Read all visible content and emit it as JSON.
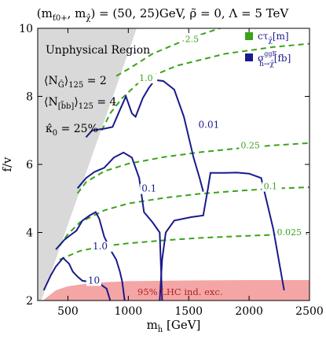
{
  "chart_data": {
    "type": "line",
    "title": "(m_{ť0+}, m_{χ̂}) = (50, 25) GeV, ρ̃ = 0, Λ = 5 TeV",
    "title_parts": {
      "prefix": "(m",
      "sub1": "ť0+",
      "mid": ", m",
      "sub2": "χ̂",
      "suffix": ") = (50, 25)GeV, ρ̃ = 0, Λ = 5 TeV"
    },
    "xlabel": "m_ĥ [GeV]",
    "xlabel_parts": {
      "base": "m",
      "sub": "ĥ",
      "unit": " [GeV]"
    },
    "ylabel": "f/v",
    "xlim": [
      250,
      2500
    ],
    "ylim": [
      2,
      10
    ],
    "xticks": [
      500,
      1000,
      1500,
      2000,
      2500
    ],
    "yticks": [
      2,
      4,
      6,
      8,
      10
    ],
    "grid": false,
    "legend_placement": "top-right",
    "legend": [
      {
        "name": "cτ_{χ̂}[m]",
        "parts": {
          "base": "cτ",
          "sub": "χ̂",
          "unit": "[m]"
        },
        "color": "#3aa31a",
        "style": "dashed"
      },
      {
        "name": "σ^{ggF}_{ĥ→χ̂}[fb]",
        "parts": {
          "base": "σ",
          "sup": "ggF",
          "sub": "ĥ→χ̂",
          "unit": "[fb]"
        },
        "color": "#1a1a8c",
        "style": "solid"
      }
    ],
    "region_unphysical": {
      "label": "Unphysical Region",
      "color": "#d9d9d9",
      "boundary": [
        [
          280,
          2
        ],
        [
          1070,
          10
        ]
      ]
    },
    "region_lhc": {
      "label": "95% LHC ind. exc.",
      "color": "#f4a6a6",
      "boundary_top": [
        [
          300,
          2.02
        ],
        [
          400,
          2.3
        ],
        [
          500,
          2.42
        ],
        [
          700,
          2.52
        ],
        [
          1000,
          2.57
        ],
        [
          1500,
          2.59
        ],
        [
          2000,
          2.6
        ],
        [
          2500,
          2.6
        ]
      ]
    },
    "annotations": [
      {
        "text": "⟨N_{Ĝ}⟩_{125} = 2",
        "parts": {
          "pre": "⟨N",
          "sub": "Ĝ",
          "close": "⟩",
          "sub2": "125",
          "val": " = 2"
        }
      },
      {
        "text": "⟨N_{[b̃b]}⟩_{125} = 4",
        "parts": {
          "pre": "⟨N",
          "sub": "[b̃b]",
          "close": "⟩",
          "sub2": "125",
          "val": " = 4"
        }
      },
      {
        "text": "κ̂_0 = 25%",
        "parts": {
          "pre": "κ̂",
          "sub": "0",
          "val": " = 25%"
        }
      }
    ],
    "ctau_contours": [
      {
        "label": "2.5",
        "label_at": [
          1470,
          9.6
        ],
        "points": [
          [
            900,
            8.6
          ],
          [
            1000,
            8.8
          ],
          [
            1200,
            9.25
          ],
          [
            1500,
            9.7
          ],
          [
            1800,
            10.05
          ]
        ]
      },
      {
        "label": "1.0",
        "label_at": [
          1090,
          8.45
        ],
        "points": [
          [
            780,
            7.0
          ],
          [
            850,
            7.5
          ],
          [
            950,
            7.95
          ],
          [
            1100,
            8.45
          ],
          [
            1400,
            8.9
          ],
          [
            1800,
            9.25
          ],
          [
            2200,
            9.45
          ],
          [
            2500,
            9.55
          ]
        ]
      },
      {
        "label": "0.25",
        "label_at": [
          1930,
          6.47
        ],
        "points": [
          [
            580,
            5.15
          ],
          [
            650,
            5.48
          ],
          [
            800,
            5.8
          ],
          [
            1000,
            6.02
          ],
          [
            1300,
            6.22
          ],
          [
            1600,
            6.36
          ],
          [
            1900,
            6.47
          ],
          [
            2200,
            6.56
          ],
          [
            2500,
            6.63
          ]
        ]
      },
      {
        "label": "0.1",
        "label_at": [
          2120,
          5.27
        ],
        "points": [
          [
            430,
            3.6
          ],
          [
            500,
            3.95
          ],
          [
            600,
            4.3
          ],
          [
            800,
            4.65
          ],
          [
            1000,
            4.85
          ],
          [
            1300,
            5.02
          ],
          [
            1600,
            5.14
          ],
          [
            1900,
            5.22
          ],
          [
            2200,
            5.29
          ],
          [
            2500,
            5.33
          ]
        ]
      },
      {
        "label": "0.025",
        "label_at": [
          2230,
          3.92
        ],
        "points": [
          [
            430,
            3.2
          ],
          [
            600,
            3.46
          ],
          [
            800,
            3.6
          ],
          [
            1000,
            3.68
          ],
          [
            1300,
            3.77
          ],
          [
            1600,
            3.84
          ],
          [
            1900,
            3.89
          ],
          [
            2200,
            3.93
          ],
          [
            2500,
            3.96
          ]
        ]
      }
    ],
    "sigma_contours": [
      {
        "label": "0.01",
        "label_at": [
          1580,
          7.08
        ],
        "points": [
          [
            1260,
            2.0
          ],
          [
            1280,
            3.2
          ],
          [
            1310,
            4.0
          ],
          [
            1380,
            4.35
          ],
          [
            1520,
            4.45
          ],
          [
            1620,
            4.5
          ],
          [
            1660,
            5.3
          ],
          [
            1680,
            5.75
          ],
          [
            1800,
            5.75
          ],
          [
            1900,
            5.76
          ],
          [
            2000,
            5.73
          ],
          [
            2100,
            5.6
          ],
          [
            2200,
            4.1
          ],
          [
            2260,
            2.9
          ],
          [
            2290,
            2.3
          ]
        ],
        "branch": [
          [
            650,
            6.8
          ],
          [
            700,
            7.0
          ],
          [
            800,
            7.05
          ],
          [
            870,
            7.1
          ],
          [
            930,
            7.6
          ],
          [
            980,
            8.0
          ],
          [
            1030,
            7.5
          ],
          [
            1060,
            7.4
          ],
          [
            1120,
            7.95
          ],
          [
            1170,
            8.25
          ],
          [
            1220,
            8.48
          ],
          [
            1290,
            8.45
          ],
          [
            1380,
            8.2
          ],
          [
            1460,
            7.4
          ],
          [
            1540,
            6.2
          ],
          [
            1590,
            5.6
          ],
          [
            1620,
            5.2
          ]
        ]
      },
      {
        "label": "0.1",
        "label_at": [
          1110,
          5.2
        ],
        "points": [
          [
            580,
            5.3
          ],
          [
            650,
            5.6
          ],
          [
            720,
            5.78
          ],
          [
            800,
            5.9
          ],
          [
            880,
            6.2
          ],
          [
            960,
            6.35
          ],
          [
            1030,
            6.2
          ],
          [
            1090,
            5.6
          ],
          [
            1130,
            4.6
          ],
          [
            1200,
            4.3
          ],
          [
            1260,
            4.0
          ],
          [
            1270,
            3.0
          ],
          [
            1280,
            2.0
          ]
        ]
      },
      {
        "label": "1.0",
        "label_at": [
          705,
          3.5
        ],
        "points": [
          [
            400,
            3.5
          ],
          [
            470,
            3.78
          ],
          [
            520,
            3.92
          ],
          [
            570,
            4.05
          ],
          [
            620,
            4.35
          ],
          [
            680,
            4.5
          ],
          [
            730,
            4.6
          ],
          [
            760,
            4.4
          ],
          [
            800,
            3.88
          ],
          [
            850,
            3.5
          ],
          [
            900,
            3.2
          ],
          [
            930,
            2.85
          ],
          [
            950,
            2.55
          ],
          [
            970,
            2.0
          ]
        ]
      },
      {
        "label": "10",
        "label_at": [
          665,
          2.5
        ],
        "points": [
          [
            300,
            2.3
          ],
          [
            360,
            2.75
          ],
          [
            400,
            3.0
          ],
          [
            460,
            3.25
          ],
          [
            510,
            3.08
          ],
          [
            540,
            2.85
          ],
          [
            580,
            2.7
          ],
          [
            620,
            2.58
          ],
          [
            680,
            2.55
          ],
          [
            760,
            2.5
          ],
          [
            820,
            2.35
          ],
          [
            850,
            2.0
          ]
        ]
      }
    ]
  }
}
